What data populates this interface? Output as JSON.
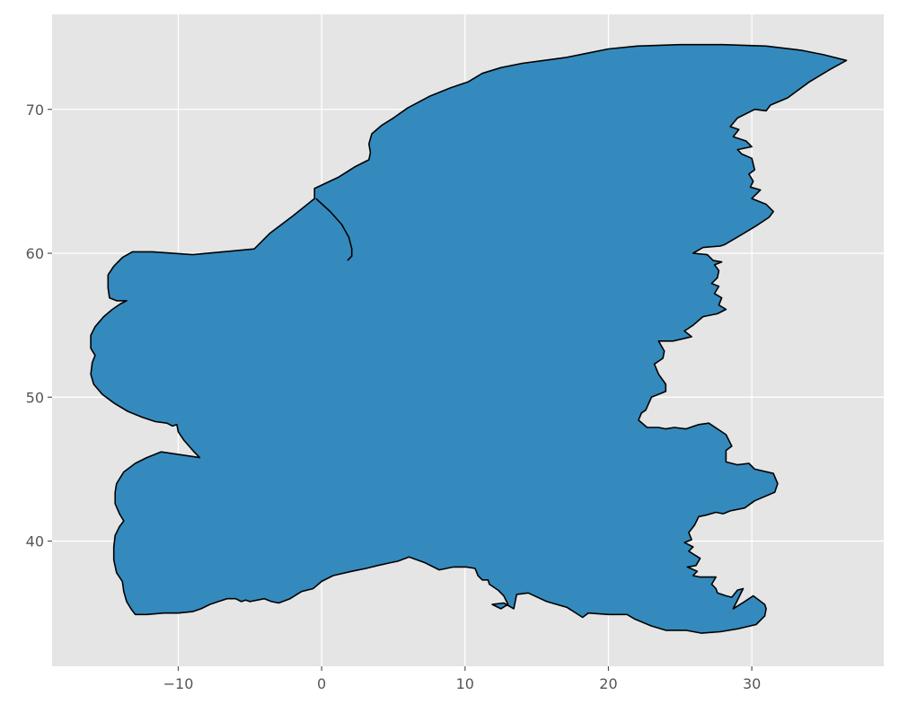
{
  "chart_data": {
    "type": "map",
    "title": "",
    "xlabel": "",
    "ylabel": "",
    "xlim": [
      -18.8,
      39.2
    ],
    "ylim": [
      31.3,
      76.6
    ],
    "grid": true,
    "legend": "none",
    "x_ticks": [
      {
        "value": -10,
        "label": "−10"
      },
      {
        "value": 0,
        "label": "0"
      },
      {
        "value": 10,
        "label": "10"
      },
      {
        "value": 20,
        "label": "20"
      },
      {
        "value": 30,
        "label": "30"
      }
    ],
    "y_ticks": [
      {
        "value": 40,
        "label": "40"
      },
      {
        "value": 50,
        "label": "50"
      },
      {
        "value": 60,
        "label": "60"
      },
      {
        "value": 70,
        "label": "70"
      }
    ],
    "colors": {
      "background": "#e5e5e5",
      "grid": "#ffffff",
      "fill": "#348abd",
      "edge": "#000000",
      "tick_text": "#555555"
    },
    "outline": [
      [
        -0.5,
        64.5
      ],
      [
        1.2,
        65.3
      ],
      [
        2.3,
        66.0
      ],
      [
        3.3,
        66.5
      ],
      [
        3.4,
        67.0
      ],
      [
        3.3,
        67.6
      ],
      [
        3.5,
        68.3
      ],
      [
        4.2,
        68.9
      ],
      [
        5.0,
        69.4
      ],
      [
        6.0,
        70.1
      ],
      [
        7.5,
        70.9
      ],
      [
        9.0,
        71.5
      ],
      [
        10.2,
        71.9
      ],
      [
        11.2,
        72.5
      ],
      [
        12.5,
        72.9
      ],
      [
        14.0,
        73.2
      ],
      [
        15.5,
        73.4
      ],
      [
        17.0,
        73.6
      ],
      [
        18.5,
        73.9
      ],
      [
        20.0,
        74.2
      ],
      [
        22.0,
        74.4
      ],
      [
        25.0,
        74.5
      ],
      [
        28.0,
        74.5
      ],
      [
        31.0,
        74.4
      ],
      [
        33.5,
        74.1
      ],
      [
        35.0,
        73.8
      ],
      [
        36.6,
        73.4
      ],
      [
        35.5,
        72.8
      ],
      [
        34.0,
        71.9
      ],
      [
        32.5,
        70.8
      ],
      [
        31.3,
        70.3
      ],
      [
        31.0,
        69.9
      ],
      [
        30.2,
        70.0
      ],
      [
        29.6,
        69.7
      ],
      [
        29.0,
        69.4
      ],
      [
        28.5,
        68.8
      ],
      [
        29.1,
        68.6
      ],
      [
        28.7,
        68.1
      ],
      [
        29.6,
        67.8
      ],
      [
        30.0,
        67.4
      ],
      [
        29.0,
        67.2
      ],
      [
        29.3,
        66.9
      ],
      [
        30.0,
        66.6
      ],
      [
        30.2,
        65.8
      ],
      [
        29.8,
        65.5
      ],
      [
        30.1,
        65.0
      ],
      [
        29.9,
        64.6
      ],
      [
        30.6,
        64.4
      ],
      [
        30.0,
        63.8
      ],
      [
        31.0,
        63.4
      ],
      [
        31.5,
        62.9
      ],
      [
        31.2,
        62.5
      ],
      [
        30.3,
        61.9
      ],
      [
        29.3,
        61.3
      ],
      [
        28.1,
        60.6
      ],
      [
        27.8,
        60.5
      ],
      [
        26.6,
        60.4
      ],
      [
        25.9,
        60.0
      ],
      [
        26.9,
        59.9
      ],
      [
        27.3,
        59.5
      ],
      [
        27.9,
        59.4
      ],
      [
        27.4,
        59.2
      ],
      [
        27.7,
        58.8
      ],
      [
        27.6,
        58.3
      ],
      [
        27.2,
        57.9
      ],
      [
        27.7,
        57.7
      ],
      [
        27.4,
        57.2
      ],
      [
        27.9,
        56.9
      ],
      [
        27.7,
        56.4
      ],
      [
        28.2,
        56.1
      ],
      [
        27.6,
        55.8
      ],
      [
        26.6,
        55.6
      ],
      [
        25.9,
        55.0
      ],
      [
        25.3,
        54.6
      ],
      [
        25.8,
        54.2
      ],
      [
        24.5,
        53.9
      ],
      [
        23.5,
        53.9
      ],
      [
        23.9,
        53.2
      ],
      [
        23.8,
        52.7
      ],
      [
        23.2,
        52.3
      ],
      [
        23.5,
        51.6
      ],
      [
        24.0,
        50.9
      ],
      [
        24.0,
        50.4
      ],
      [
        23.0,
        50.0
      ],
      [
        22.6,
        49.1
      ],
      [
        22.3,
        48.9
      ],
      [
        22.1,
        48.4
      ],
      [
        22.7,
        47.9
      ],
      [
        23.5,
        47.9
      ],
      [
        24.0,
        47.8
      ],
      [
        24.6,
        47.9
      ],
      [
        25.4,
        47.8
      ],
      [
        26.3,
        48.1
      ],
      [
        27.0,
        48.2
      ],
      [
        28.2,
        47.4
      ],
      [
        28.6,
        46.6
      ],
      [
        28.2,
        46.3
      ],
      [
        28.2,
        45.5
      ],
      [
        29.0,
        45.3
      ],
      [
        29.8,
        45.4
      ],
      [
        30.2,
        45.0
      ],
      [
        31.5,
        44.7
      ],
      [
        31.8,
        44.0
      ],
      [
        31.6,
        43.4
      ],
      [
        30.2,
        42.8
      ],
      [
        29.5,
        42.3
      ],
      [
        28.5,
        42.1
      ],
      [
        28.0,
        41.9
      ],
      [
        27.5,
        42.0
      ],
      [
        26.8,
        41.8
      ],
      [
        26.3,
        41.7
      ],
      [
        26.0,
        41.1
      ],
      [
        25.6,
        40.6
      ],
      [
        25.8,
        40.1
      ],
      [
        25.3,
        39.9
      ],
      [
        25.9,
        39.6
      ],
      [
        25.6,
        39.3
      ],
      [
        26.4,
        38.8
      ],
      [
        26.1,
        38.3
      ],
      [
        25.5,
        38.2
      ],
      [
        26.2,
        37.9
      ],
      [
        25.9,
        37.6
      ],
      [
        26.4,
        37.5
      ],
      [
        27.5,
        37.5
      ],
      [
        27.2,
        37.0
      ],
      [
        27.5,
        36.7
      ],
      [
        27.6,
        36.4
      ],
      [
        28.2,
        36.2
      ],
      [
        28.6,
        36.1
      ],
      [
        29.0,
        36.6
      ],
      [
        29.4,
        36.7
      ],
      [
        28.7,
        35.3
      ],
      [
        29.5,
        35.8
      ],
      [
        30.1,
        36.2
      ],
      [
        30.9,
        35.6
      ],
      [
        31.0,
        35.3
      ],
      [
        30.9,
        34.8
      ],
      [
        30.3,
        34.2
      ],
      [
        29.0,
        33.9
      ],
      [
        27.8,
        33.7
      ],
      [
        26.5,
        33.6
      ],
      [
        25.4,
        33.8
      ],
      [
        24.0,
        33.8
      ],
      [
        23.0,
        34.1
      ],
      [
        21.8,
        34.6
      ],
      [
        21.3,
        34.9
      ],
      [
        20.0,
        34.9
      ],
      [
        18.6,
        35.0
      ],
      [
        18.2,
        34.7
      ],
      [
        17.1,
        35.4
      ],
      [
        15.7,
        35.8
      ],
      [
        14.4,
        36.4
      ],
      [
        13.6,
        36.3
      ],
      [
        13.4,
        35.3
      ],
      [
        12.7,
        35.7
      ],
      [
        11.9,
        35.6
      ],
      [
        12.5,
        35.3
      ],
      [
        13.0,
        35.6
      ],
      [
        12.7,
        36.2
      ],
      [
        12.3,
        36.6
      ],
      [
        11.7,
        37.0
      ],
      [
        11.6,
        37.3
      ],
      [
        11.2,
        37.3
      ],
      [
        10.9,
        37.6
      ],
      [
        10.7,
        38.1
      ],
      [
        10.1,
        38.2
      ],
      [
        9.2,
        38.2
      ],
      [
        8.2,
        38.0
      ],
      [
        7.2,
        38.5
      ],
      [
        6.1,
        38.9
      ],
      [
        5.3,
        38.6
      ],
      [
        4.8,
        38.5
      ],
      [
        3.9,
        38.3
      ],
      [
        3.1,
        38.1
      ],
      [
        2.1,
        37.9
      ],
      [
        0.8,
        37.6
      ],
      [
        0.0,
        37.2
      ],
      [
        -0.6,
        36.7
      ],
      [
        -1.4,
        36.5
      ],
      [
        -2.2,
        36.0
      ],
      [
        -3.0,
        35.7
      ],
      [
        -3.5,
        35.8
      ],
      [
        -4.0,
        36.0
      ],
      [
        -4.5,
        35.9
      ],
      [
        -5.0,
        35.8
      ],
      [
        -5.3,
        35.9
      ],
      [
        -5.6,
        35.8
      ],
      [
        -6.0,
        36.0
      ],
      [
        -6.6,
        36.0
      ],
      [
        -7.2,
        35.8
      ],
      [
        -7.8,
        35.6
      ],
      [
        -8.4,
        35.3
      ],
      [
        -9.0,
        35.1
      ],
      [
        -10.0,
        35.0
      ],
      [
        -11.0,
        35.0
      ],
      [
        -12.2,
        34.9
      ],
      [
        -13.0,
        34.9
      ],
      [
        -13.3,
        35.3
      ],
      [
        -13.6,
        35.8
      ],
      [
        -13.8,
        36.5
      ],
      [
        -13.9,
        37.2
      ],
      [
        -14.3,
        37.8
      ],
      [
        -14.5,
        38.7
      ],
      [
        -14.5,
        39.6
      ],
      [
        -14.4,
        40.4
      ],
      [
        -14.1,
        41.0
      ],
      [
        -13.8,
        41.4
      ],
      [
        -14.1,
        41.9
      ],
      [
        -14.4,
        42.6
      ],
      [
        -14.4,
        43.4
      ],
      [
        -14.3,
        44.0
      ],
      [
        -13.8,
        44.8
      ],
      [
        -13.0,
        45.4
      ],
      [
        -12.2,
        45.8
      ],
      [
        -11.2,
        46.2
      ],
      [
        -8.5,
        45.8
      ],
      [
        -8.9,
        46.2
      ],
      [
        -9.6,
        47.0
      ],
      [
        -10.0,
        47.6
      ],
      [
        -10.1,
        48.1
      ],
      [
        -10.4,
        48.0
      ],
      [
        -10.8,
        48.2
      ],
      [
        -11.6,
        48.3
      ],
      [
        -12.5,
        48.6
      ],
      [
        -13.5,
        49.0
      ],
      [
        -14.5,
        49.6
      ],
      [
        -15.3,
        50.2
      ],
      [
        -15.9,
        50.9
      ],
      [
        -16.1,
        51.6
      ],
      [
        -16.0,
        52.4
      ],
      [
        -15.8,
        52.9
      ],
      [
        -16.1,
        53.4
      ],
      [
        -16.1,
        54.3
      ],
      [
        -15.8,
        54.9
      ],
      [
        -15.2,
        55.6
      ],
      [
        -14.6,
        56.1
      ],
      [
        -14.0,
        56.5
      ],
      [
        -13.6,
        56.7
      ],
      [
        -14.3,
        56.7
      ],
      [
        -14.8,
        56.9
      ],
      [
        -14.9,
        57.6
      ],
      [
        -14.9,
        58.5
      ],
      [
        -14.5,
        59.1
      ],
      [
        -13.9,
        59.7
      ],
      [
        -13.2,
        60.1
      ],
      [
        -11.8,
        60.1
      ],
      [
        -9.0,
        59.9
      ],
      [
        -4.7,
        60.3
      ],
      [
        -4.3,
        60.7
      ],
      [
        -3.6,
        61.4
      ],
      [
        -2.0,
        62.6
      ],
      [
        -0.5,
        63.8
      ]
    ],
    "inner_boundary": [
      [
        -0.4,
        63.8
      ],
      [
        0.6,
        62.9
      ],
      [
        1.4,
        62.0
      ],
      [
        1.9,
        61.1
      ],
      [
        2.1,
        60.3
      ],
      [
        2.1,
        59.8
      ],
      [
        1.8,
        59.5
      ]
    ]
  }
}
